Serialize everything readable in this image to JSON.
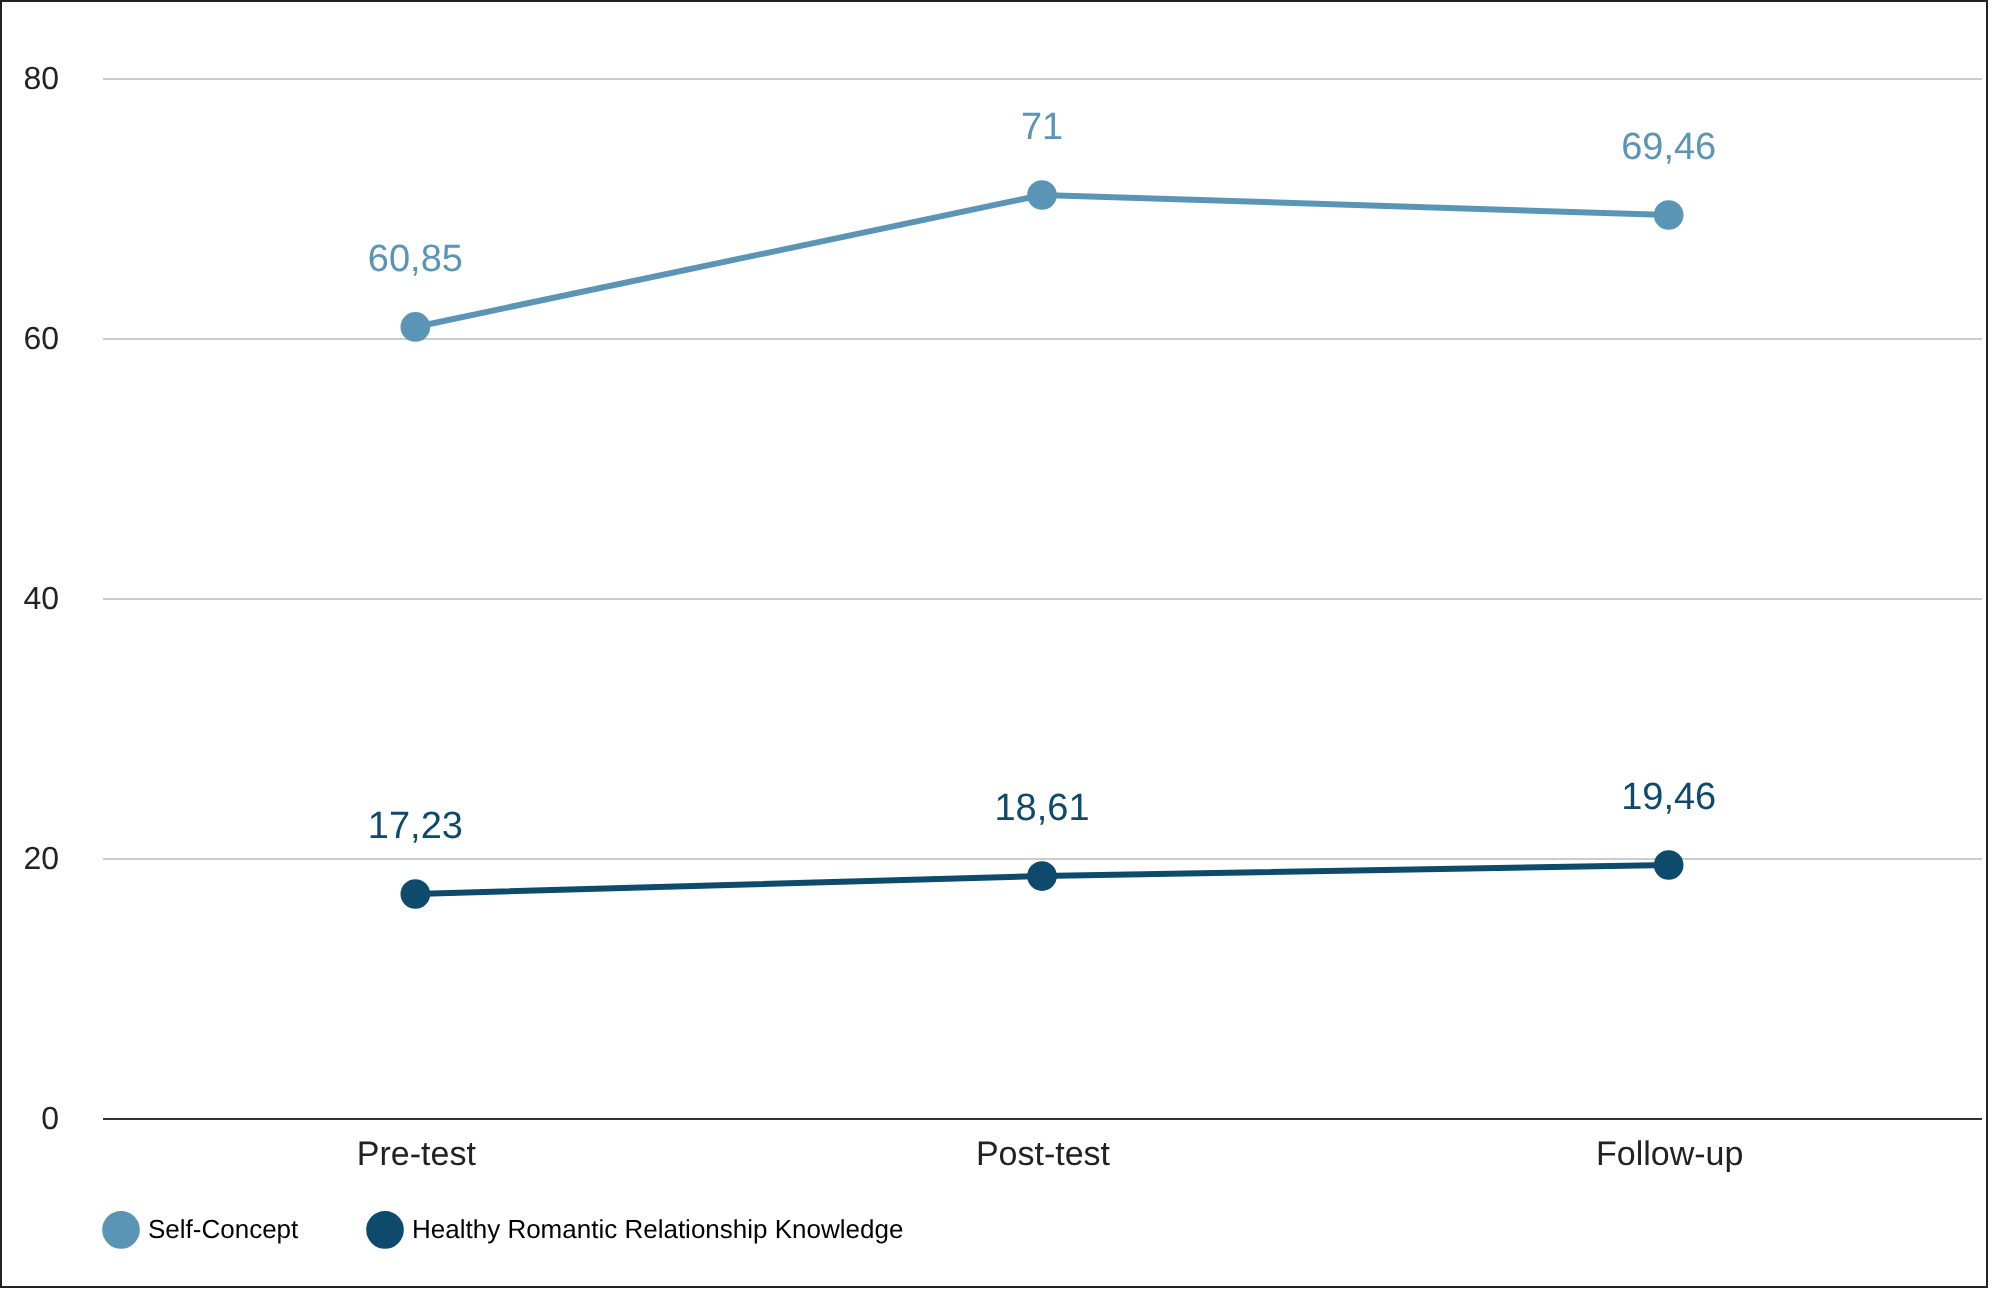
{
  "chart_data": {
    "type": "line",
    "categories": [
      "Pre-test",
      "Post-test",
      "Follow-up"
    ],
    "series": [
      {
        "name": "Self-Concept",
        "color": "#5b95b5",
        "values": [
          60.85,
          71,
          69.46
        ],
        "value_labels": [
          "60,85",
          "71",
          "69,46"
        ]
      },
      {
        "name": "Healthy Romantic Relationship Knowledge",
        "color": "#0d4a6b",
        "values": [
          17.23,
          18.61,
          19.46
        ],
        "value_labels": [
          "17,23",
          "18,61",
          "19,46"
        ]
      }
    ],
    "ylim": [
      0,
      80
    ],
    "yticks": [
      0,
      20,
      40,
      60,
      80
    ],
    "grid": "y",
    "legend": "bottom",
    "marker": "circle",
    "line_style": "solid"
  }
}
